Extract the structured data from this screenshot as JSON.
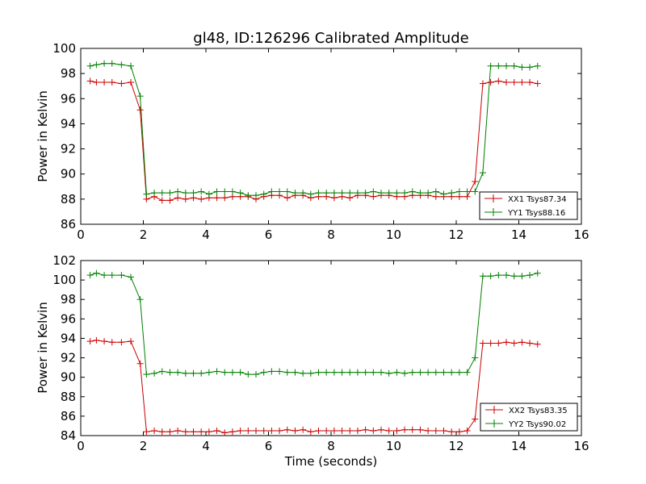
{
  "figure": {
    "title": "gl48, ID:126296 Calibrated Amplitude",
    "xlabel": "Time (seconds)"
  },
  "chart_data": [
    {
      "type": "line",
      "title": "gl48, ID:126296 Calibrated Amplitude",
      "xlabel": "",
      "ylabel": "Power in Kelvin",
      "xlim": [
        0,
        16
      ],
      "ylim": [
        86,
        100
      ],
      "xticks": [
        0,
        2,
        4,
        6,
        8,
        10,
        12,
        14,
        16
      ],
      "yticks": [
        86,
        88,
        90,
        92,
        94,
        96,
        98,
        100
      ],
      "legend_position": "lower right",
      "grid": false,
      "x": [
        0.3,
        0.5,
        0.75,
        1.0,
        1.3,
        1.6,
        1.9,
        2.1,
        2.35,
        2.6,
        2.85,
        3.1,
        3.35,
        3.6,
        3.85,
        4.1,
        4.35,
        4.6,
        4.85,
        5.1,
        5.35,
        5.6,
        5.85,
        6.1,
        6.35,
        6.6,
        6.85,
        7.1,
        7.35,
        7.6,
        7.85,
        8.1,
        8.35,
        8.6,
        8.85,
        9.1,
        9.35,
        9.6,
        9.85,
        10.1,
        10.35,
        10.6,
        10.85,
        11.1,
        11.35,
        11.6,
        11.85,
        12.1,
        12.35,
        12.6,
        12.85,
        13.1,
        13.35,
        13.6,
        13.85,
        14.1,
        14.35,
        14.6
      ],
      "series": [
        {
          "name": "XX1 Tsys87.34",
          "color": "#cc0000",
          "values": [
            97.4,
            97.3,
            97.3,
            97.3,
            97.2,
            97.3,
            95.1,
            88.0,
            88.2,
            87.9,
            87.9,
            88.1,
            88.0,
            88.1,
            88.0,
            88.1,
            88.1,
            88.1,
            88.2,
            88.2,
            88.2,
            88.0,
            88.2,
            88.3,
            88.3,
            88.1,
            88.3,
            88.3,
            88.1,
            88.2,
            88.2,
            88.1,
            88.2,
            88.1,
            88.3,
            88.3,
            88.2,
            88.3,
            88.3,
            88.2,
            88.2,
            88.3,
            88.3,
            88.3,
            88.2,
            88.2,
            88.2,
            88.2,
            88.2,
            89.4,
            97.2,
            97.3,
            97.4,
            97.3,
            97.3,
            97.3,
            97.3,
            97.2
          ]
        },
        {
          "name": "YY1 Tsys88.16",
          "color": "#008000",
          "values": [
            98.6,
            98.7,
            98.8,
            98.8,
            98.7,
            98.6,
            96.2,
            88.4,
            88.5,
            88.5,
            88.5,
            88.6,
            88.5,
            88.5,
            88.6,
            88.4,
            88.6,
            88.6,
            88.6,
            88.5,
            88.3,
            88.3,
            88.4,
            88.6,
            88.6,
            88.6,
            88.5,
            88.5,
            88.4,
            88.5,
            88.5,
            88.5,
            88.5,
            88.5,
            88.5,
            88.5,
            88.6,
            88.5,
            88.5,
            88.5,
            88.5,
            88.6,
            88.5,
            88.5,
            88.6,
            88.4,
            88.5,
            88.6,
            88.6,
            88.6,
            90.1,
            98.6,
            98.6,
            98.6,
            98.6,
            98.5,
            98.5,
            98.6
          ]
        }
      ]
    },
    {
      "type": "line",
      "title": "",
      "xlabel": "Time (seconds)",
      "ylabel": "Power in Kelvin",
      "xlim": [
        0,
        16
      ],
      "ylim": [
        84,
        102
      ],
      "xticks": [
        0,
        2,
        4,
        6,
        8,
        10,
        12,
        14,
        16
      ],
      "yticks": [
        84,
        86,
        88,
        90,
        92,
        94,
        96,
        98,
        100,
        102
      ],
      "legend_position": "lower right",
      "grid": false,
      "x": [
        0.3,
        0.5,
        0.75,
        1.0,
        1.3,
        1.6,
        1.9,
        2.1,
        2.35,
        2.6,
        2.85,
        3.1,
        3.35,
        3.6,
        3.85,
        4.1,
        4.35,
        4.6,
        4.85,
        5.1,
        5.35,
        5.6,
        5.85,
        6.1,
        6.35,
        6.6,
        6.85,
        7.1,
        7.35,
        7.6,
        7.85,
        8.1,
        8.35,
        8.6,
        8.85,
        9.1,
        9.35,
        9.6,
        9.85,
        10.1,
        10.35,
        10.6,
        10.85,
        11.1,
        11.35,
        11.6,
        11.85,
        12.1,
        12.35,
        12.6,
        12.85,
        13.1,
        13.35,
        13.6,
        13.85,
        14.1,
        14.35,
        14.6
      ],
      "series": [
        {
          "name": "XX2 Tsys83.35",
          "color": "#cc0000",
          "values": [
            93.7,
            93.8,
            93.7,
            93.6,
            93.6,
            93.7,
            91.4,
            84.4,
            84.5,
            84.4,
            84.4,
            84.5,
            84.4,
            84.4,
            84.4,
            84.4,
            84.5,
            84.3,
            84.4,
            84.5,
            84.5,
            84.5,
            84.5,
            84.5,
            84.5,
            84.6,
            84.5,
            84.6,
            84.4,
            84.5,
            84.5,
            84.5,
            84.5,
            84.5,
            84.5,
            84.6,
            84.5,
            84.6,
            84.5,
            84.5,
            84.6,
            84.6,
            84.6,
            84.5,
            84.5,
            84.5,
            84.4,
            84.4,
            84.5,
            85.7,
            93.5,
            93.5,
            93.5,
            93.6,
            93.5,
            93.6,
            93.5,
            93.4
          ]
        },
        {
          "name": "YY2 Tsys90.02",
          "color": "#008000",
          "values": [
            100.5,
            100.7,
            100.5,
            100.5,
            100.5,
            100.3,
            98.0,
            90.3,
            90.4,
            90.6,
            90.5,
            90.5,
            90.4,
            90.4,
            90.4,
            90.5,
            90.6,
            90.5,
            90.5,
            90.5,
            90.3,
            90.3,
            90.5,
            90.6,
            90.6,
            90.5,
            90.5,
            90.4,
            90.4,
            90.5,
            90.5,
            90.5,
            90.5,
            90.5,
            90.5,
            90.5,
            90.5,
            90.5,
            90.4,
            90.5,
            90.4,
            90.5,
            90.5,
            90.5,
            90.5,
            90.5,
            90.5,
            90.5,
            90.5,
            92.0,
            100.4,
            100.4,
            100.5,
            100.5,
            100.4,
            100.4,
            100.5,
            100.7
          ]
        }
      ]
    }
  ]
}
